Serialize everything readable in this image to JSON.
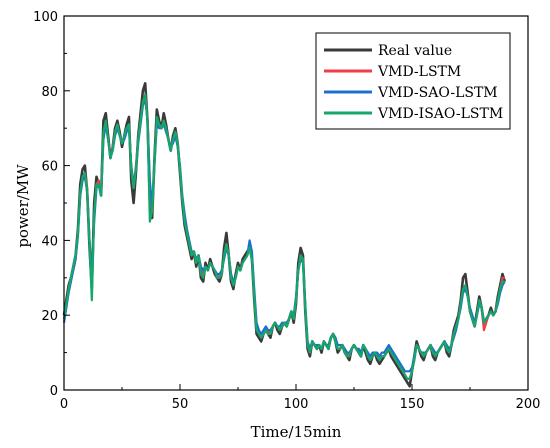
{
  "chart_data": {
    "type": "line",
    "xlabel": "Time/15min",
    "ylabel": "power/MW",
    "xlim": [
      0,
      200
    ],
    "ylim": [
      0,
      100
    ],
    "x_ticks": [
      0,
      50,
      100,
      150,
      200
    ],
    "y_ticks": [
      0,
      20,
      40,
      60,
      80,
      100
    ],
    "grid": false,
    "legend_position": "top-right",
    "series": [
      {
        "name": "Real value",
        "color": "#3a3a3a",
        "values": [
          20,
          24,
          28,
          30,
          33,
          36,
          43,
          55,
          59,
          60,
          53,
          38,
          27,
          50,
          57,
          55,
          52,
          72,
          74,
          68,
          62,
          65,
          70,
          72,
          69,
          65,
          68,
          71,
          73,
          56,
          50,
          58,
          68,
          74,
          80,
          82,
          72,
          50,
          46,
          62,
          75,
          72,
          70,
          74,
          71,
          67,
          64,
          68,
          70,
          66,
          58,
          50,
          44,
          41,
          38,
          35,
          37,
          33,
          36,
          30,
          29,
          34,
          32,
          35,
          33,
          31,
          30,
          29,
          31,
          38,
          42,
          36,
          29,
          27,
          31,
          34,
          32,
          35,
          36,
          37,
          38,
          35,
          24,
          15,
          14,
          13,
          15,
          16,
          15,
          14,
          17,
          18,
          16,
          15,
          17,
          18,
          17,
          19,
          21,
          18,
          23,
          34,
          38,
          36,
          21,
          11,
          9,
          13,
          12,
          11,
          12,
          10,
          13,
          12,
          11,
          14,
          15,
          13,
          10,
          11,
          12,
          10,
          9,
          8,
          11,
          12,
          11,
          10,
          9,
          12,
          10,
          8,
          7,
          9,
          10,
          8,
          7,
          8,
          9,
          10,
          11,
          9,
          8,
          7,
          6,
          5,
          4,
          3,
          2,
          1,
          5,
          9,
          13,
          11,
          9,
          8,
          10,
          11,
          12,
          9,
          8,
          10,
          11,
          12,
          13,
          10,
          9,
          12,
          16,
          18,
          20,
          24,
          30,
          31,
          26,
          21,
          19,
          17,
          21,
          25,
          22,
          18,
          19,
          20,
          22,
          20,
          21,
          25,
          28,
          31,
          29
        ]
      },
      {
        "name": "VMD-LSTM",
        "color": "#ee3e46",
        "values": [
          19,
          22,
          27,
          30,
          32,
          35,
          42,
          52,
          57,
          58,
          54,
          40,
          29,
          46,
          55,
          56,
          53,
          68,
          72,
          67,
          63,
          65,
          69,
          71,
          68,
          66,
          68,
          70,
          71,
          59,
          54,
          60,
          67,
          72,
          77,
          79,
          73,
          55,
          48,
          61,
          72,
          71,
          70,
          72,
          70,
          67,
          65,
          67,
          69,
          66,
          59,
          51,
          46,
          42,
          39,
          36,
          37,
          34,
          36,
          32,
          31,
          33,
          32,
          34,
          33,
          32,
          31,
          30,
          31,
          36,
          39,
          36,
          31,
          28,
          30,
          33,
          32,
          34,
          35,
          36,
          38,
          36,
          26,
          17,
          15,
          14,
          15,
          16,
          16,
          15,
          17,
          18,
          17,
          16,
          17,
          18,
          18,
          19,
          21,
          19,
          24,
          32,
          36,
          35,
          22,
          12,
          10,
          13,
          12,
          12,
          12,
          11,
          13,
          12,
          12,
          14,
          15,
          14,
          11,
          11,
          12,
          11,
          10,
          9,
          11,
          12,
          11,
          11,
          10,
          12,
          11,
          9,
          8,
          9,
          10,
          9,
          8,
          9,
          9,
          10,
          11,
          10,
          9,
          8,
          7,
          6,
          5,
          4,
          3,
          3,
          5,
          8,
          12,
          11,
          10,
          9,
          10,
          11,
          12,
          10,
          9,
          10,
          11,
          12,
          13,
          11,
          10,
          12,
          15,
          17,
          19,
          23,
          27,
          28,
          25,
          21,
          19,
          17,
          20,
          24,
          22,
          16,
          18,
          20,
          21,
          20,
          21,
          24,
          27,
          30,
          30
        ]
      },
      {
        "name": "VMD-SAO-LSTM",
        "color": "#1f6fd1",
        "values": [
          18,
          22,
          26,
          29,
          32,
          35,
          41,
          52,
          56,
          57,
          53,
          40,
          30,
          45,
          54,
          55,
          52,
          67,
          71,
          67,
          63,
          64,
          68,
          70,
          68,
          66,
          67,
          69,
          70,
          60,
          55,
          59,
          66,
          71,
          76,
          78,
          72,
          56,
          49,
          60,
          71,
          70,
          70,
          71,
          69,
          67,
          65,
          66,
          68,
          65,
          60,
          52,
          47,
          43,
          40,
          37,
          37,
          35,
          36,
          33,
          32,
          33,
          32,
          34,
          33,
          32,
          31,
          31,
          32,
          35,
          38,
          36,
          31,
          29,
          30,
          33,
          32,
          34,
          35,
          36,
          40,
          37,
          27,
          18,
          16,
          15,
          16,
          17,
          16,
          16,
          17,
          18,
          17,
          17,
          18,
          18,
          18,
          19,
          21,
          20,
          25,
          32,
          35,
          34,
          23,
          13,
          11,
          13,
          12,
          12,
          12,
          11,
          13,
          12,
          12,
          14,
          15,
          14,
          12,
          12,
          12,
          11,
          10,
          10,
          11,
          12,
          11,
          11,
          10,
          12,
          11,
          10,
          9,
          10,
          10,
          10,
          9,
          10,
          10,
          11,
          12,
          11,
          10,
          9,
          8,
          7,
          6,
          5,
          5,
          5,
          6,
          9,
          12,
          11,
          10,
          10,
          10,
          11,
          12,
          11,
          10,
          10,
          11,
          12,
          13,
          12,
          11,
          12,
          14,
          16,
          19,
          22,
          26,
          27,
          25,
          22,
          20,
          18,
          20,
          23,
          22,
          18,
          19,
          20,
          21,
          20,
          21,
          23,
          26,
          28,
          29
        ]
      },
      {
        "name": "VMD-ISAO-LSTM",
        "color": "#12a86a",
        "values": [
          19,
          23,
          27,
          30,
          33,
          36,
          42,
          53,
          57,
          58,
          53,
          39,
          24,
          47,
          55,
          55,
          52,
          69,
          72,
          67,
          62,
          64,
          69,
          71,
          68,
          66,
          68,
          70,
          71,
          59,
          54,
          59,
          67,
          72,
          77,
          79,
          72,
          45,
          48,
          61,
          73,
          71,
          70,
          72,
          70,
          67,
          64,
          67,
          69,
          66,
          59,
          51,
          45,
          42,
          39,
          36,
          37,
          34,
          36,
          31,
          30,
          33,
          32,
          34,
          33,
          32,
          30,
          30,
          31,
          36,
          39,
          36,
          30,
          28,
          30,
          33,
          32,
          34,
          35,
          36,
          38,
          35,
          25,
          16,
          15,
          14,
          15,
          16,
          15,
          15,
          17,
          18,
          17,
          16,
          17,
          18,
          17,
          19,
          21,
          19,
          24,
          32,
          36,
          35,
          22,
          12,
          10,
          13,
          12,
          11,
          12,
          11,
          13,
          12,
          11,
          14,
          15,
          13,
          11,
          11,
          12,
          10,
          9,
          9,
          11,
          12,
          11,
          10,
          9,
          12,
          11,
          9,
          8,
          9,
          10,
          9,
          8,
          9,
          9,
          10,
          11,
          10,
          9,
          8,
          7,
          6,
          5,
          4,
          3,
          3,
          5,
          8,
          12,
          11,
          10,
          9,
          10,
          11,
          12,
          10,
          9,
          10,
          11,
          12,
          13,
          11,
          10,
          12,
          15,
          17,
          19,
          23,
          27,
          28,
          25,
          21,
          19,
          17,
          20,
          24,
          22,
          18,
          19,
          20,
          21,
          20,
          21,
          24,
          27,
          29,
          29
        ]
      }
    ]
  }
}
